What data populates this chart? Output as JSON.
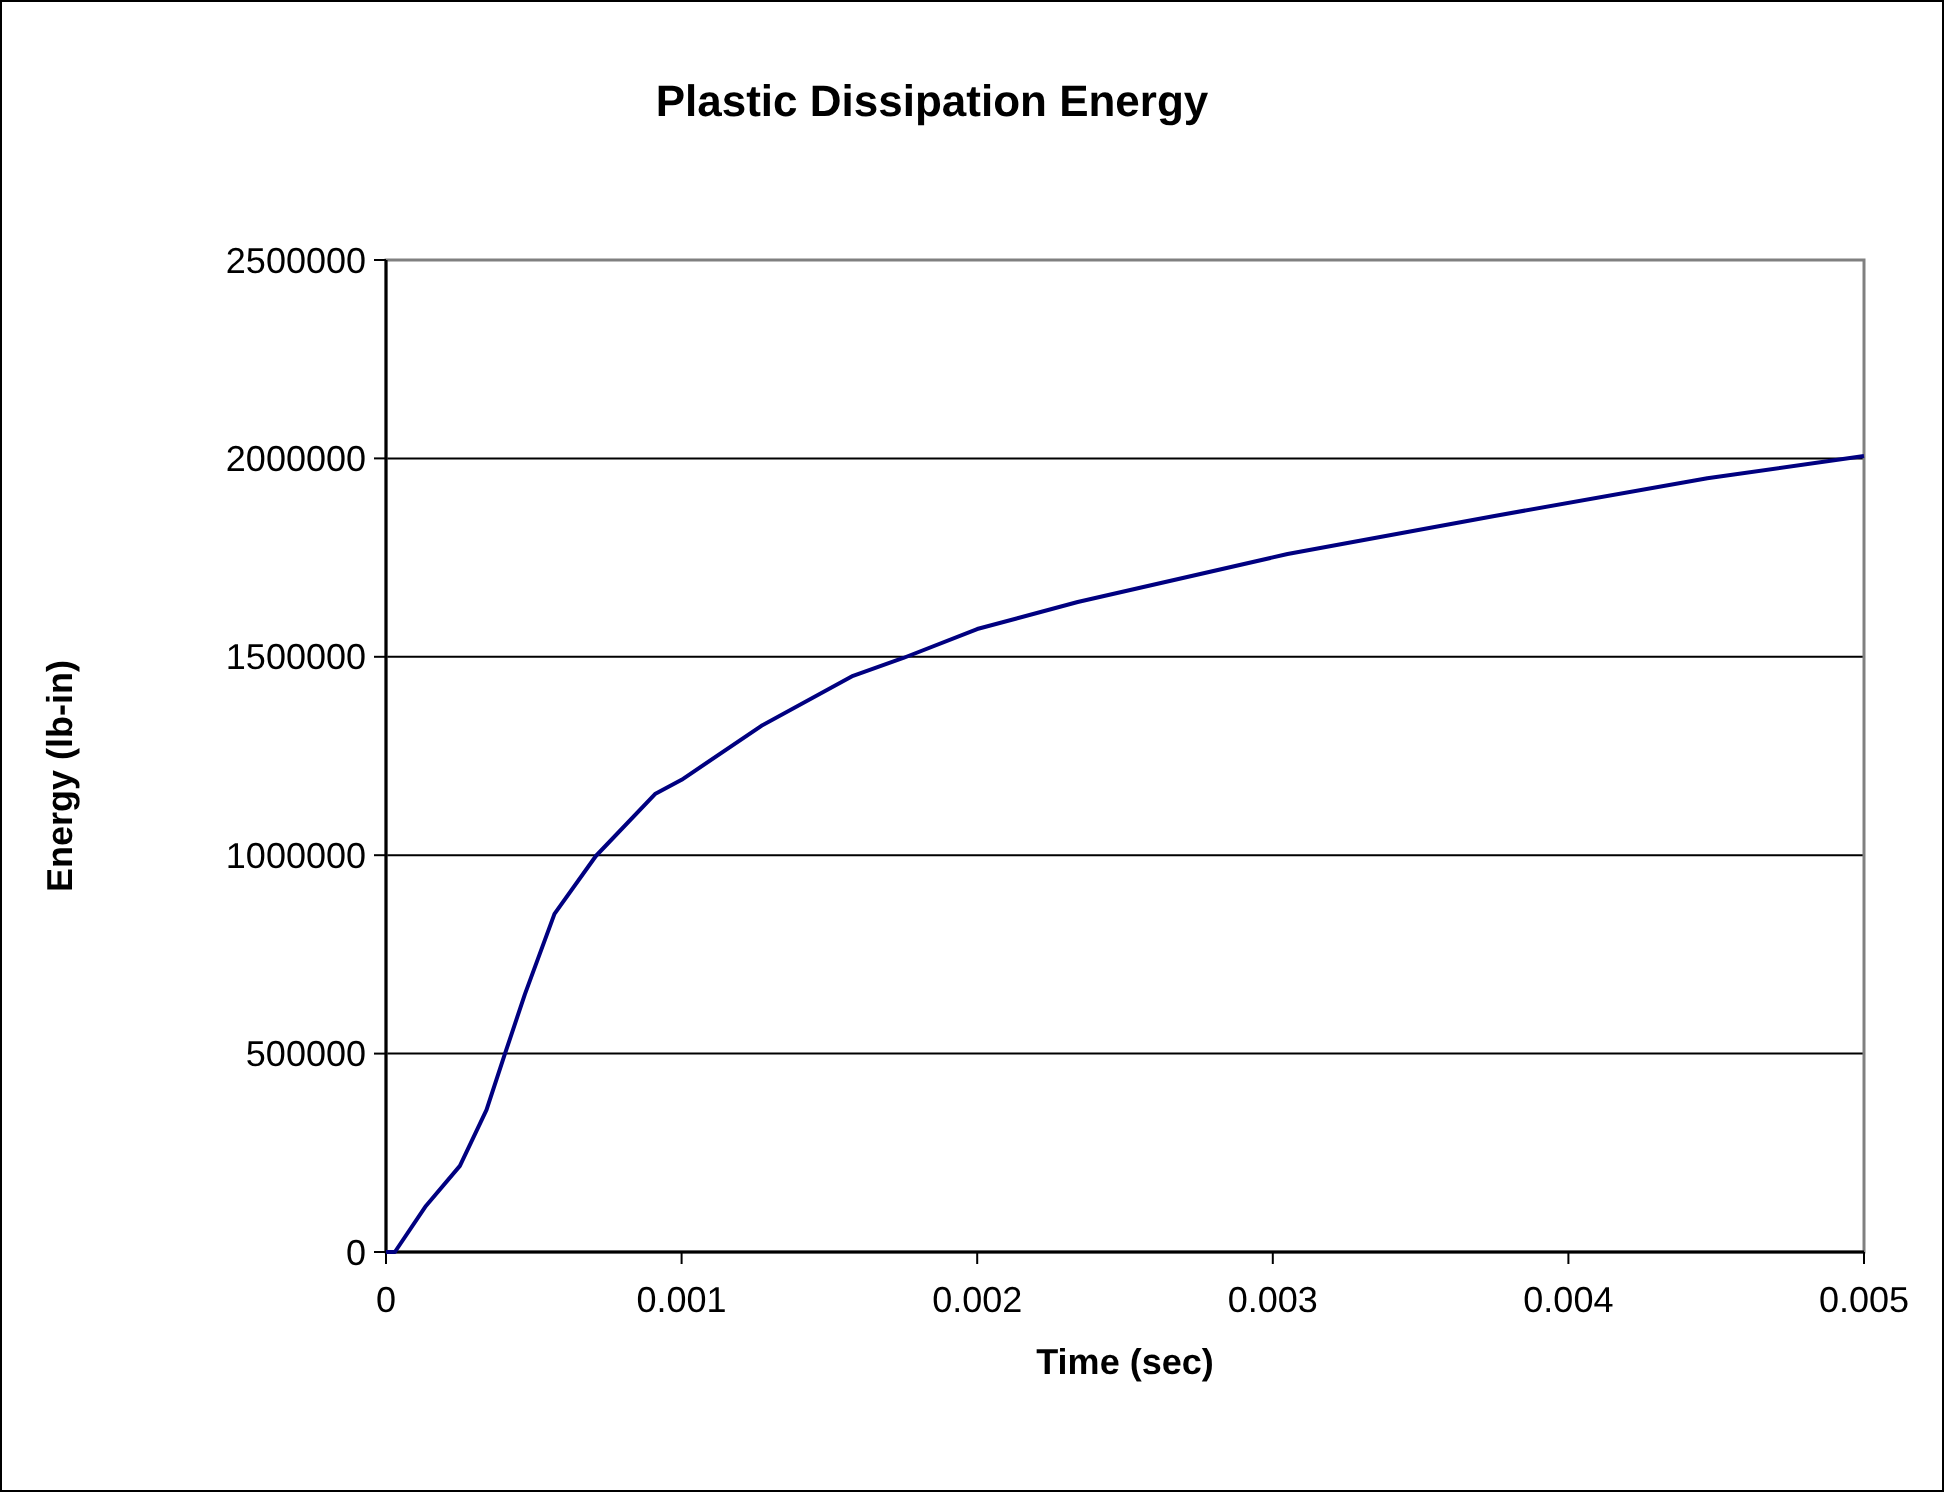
{
  "chart_data": {
    "type": "line",
    "title": "Plastic Dissipation Energy",
    "xlabel": "Time (sec)",
    "ylabel": "Energy (lb-in)",
    "xlim": [
      0,
      0.005
    ],
    "xticks": [
      0,
      0.001,
      0.002,
      0.003,
      0.004,
      0.005
    ],
    "ylim": [
      0,
      2500000
    ],
    "yticks": [
      0,
      500000,
      1000000,
      1500000,
      2000000,
      2500000
    ],
    "grid": "y",
    "marker": "none",
    "line_style": "solid",
    "series": [
      {
        "color": "#000080",
        "x": [
          0,
          3e-05,
          0.000135,
          0.00025,
          0.00034,
          0.0004,
          0.00047,
          0.00057,
          0.00071,
          0.00091,
          0.001,
          0.00127,
          0.00158,
          0.00175,
          0.002,
          0.00234,
          0.00305,
          0.00375,
          0.00447,
          0.005
        ],
        "values": [
          0,
          0,
          116000,
          217000,
          358000,
          494000,
          650000,
          852000,
          998000,
          1154000,
          1190000,
          1326000,
          1452000,
          1497000,
          1570000,
          1638000,
          1759000,
          1855000,
          1950000,
          2006000
        ]
      }
    ]
  }
}
